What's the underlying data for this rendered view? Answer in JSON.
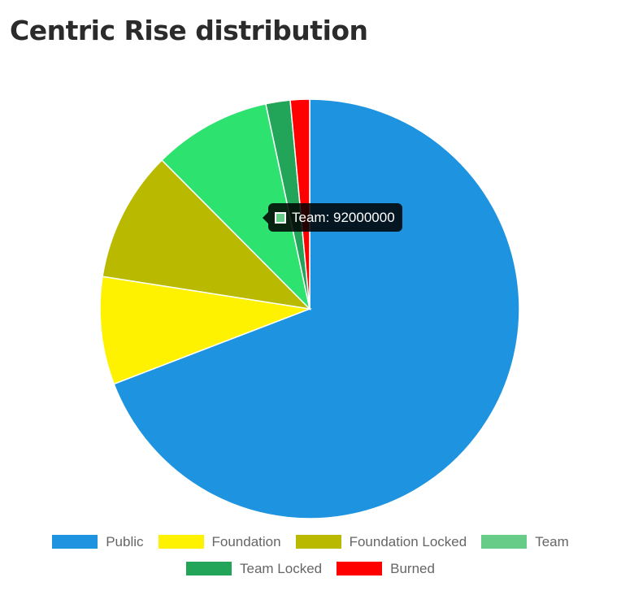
{
  "title": "Centric Rise distribution",
  "tooltip": {
    "label": "Team: 92000000",
    "color": "#66cc88"
  },
  "chart_data": {
    "type": "pie",
    "categories": [
      "Public",
      "Foundation",
      "Foundation Locked",
      "Team",
      "Team Locked",
      "Burned"
    ],
    "values": [
      700000000,
      84000000,
      102000000,
      92000000,
      19000000,
      15000000
    ],
    "colors": [
      "#1e94e0",
      "#fff200",
      "#b9b900",
      "#2de26f",
      "#22a459",
      "#ff0000"
    ],
    "legend_colors": [
      "#1e94e0",
      "#fff200",
      "#b9b900",
      "#66cc88",
      "#22a459",
      "#ff0000"
    ],
    "legend_position": "bottom"
  }
}
